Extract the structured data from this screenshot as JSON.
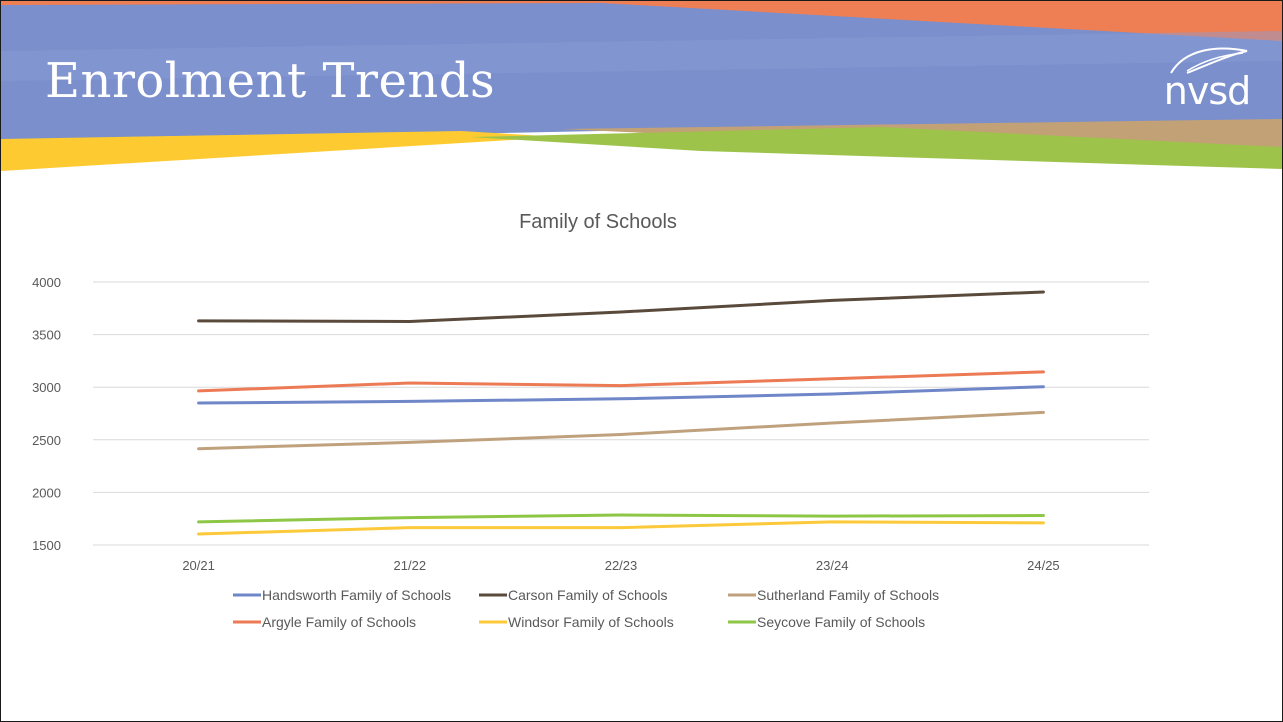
{
  "slide": {
    "title": "Enrolment Trends",
    "logo_text": "nvsd",
    "banner_colors": {
      "orange": "#ee7f54",
      "blue": "#7a8fcb",
      "yellow": "#fdcb31",
      "green": "#9dc34a",
      "tan": "#c2a177"
    }
  },
  "chart_data": {
    "type": "line",
    "title": "Family of Schools",
    "categories": [
      "20/21",
      "21/22",
      "22/23",
      "23/24",
      "24/25"
    ],
    "ylim": [
      1500,
      4000
    ],
    "yticks": [
      1500,
      2000,
      2500,
      3000,
      3500,
      4000
    ],
    "grid": true,
    "legend": "bottom",
    "series": [
      {
        "name": "Handsworth Family of Schools",
        "color": "#6f87c8",
        "values": [
          2850,
          2865,
          2890,
          2935,
          3005
        ]
      },
      {
        "name": "Carson Family of Schools",
        "color": "#594a3c",
        "values": [
          3630,
          3625,
          3715,
          3825,
          3905
        ]
      },
      {
        "name": "Sutherland Family of Schools",
        "color": "#bfa17e",
        "values": [
          2415,
          2475,
          2550,
          2660,
          2760
        ]
      },
      {
        "name": "Argyle Family of Schools",
        "color": "#ec7a55",
        "values": [
          2965,
          3040,
          3015,
          3080,
          3145
        ]
      },
      {
        "name": "Windsor Family of Schools",
        "color": "#fcc93a",
        "values": [
          1605,
          1665,
          1665,
          1720,
          1710
        ]
      },
      {
        "name": "Seycove Family of Schools",
        "color": "#8ec646",
        "values": [
          1720,
          1760,
          1785,
          1775,
          1780
        ]
      }
    ]
  }
}
